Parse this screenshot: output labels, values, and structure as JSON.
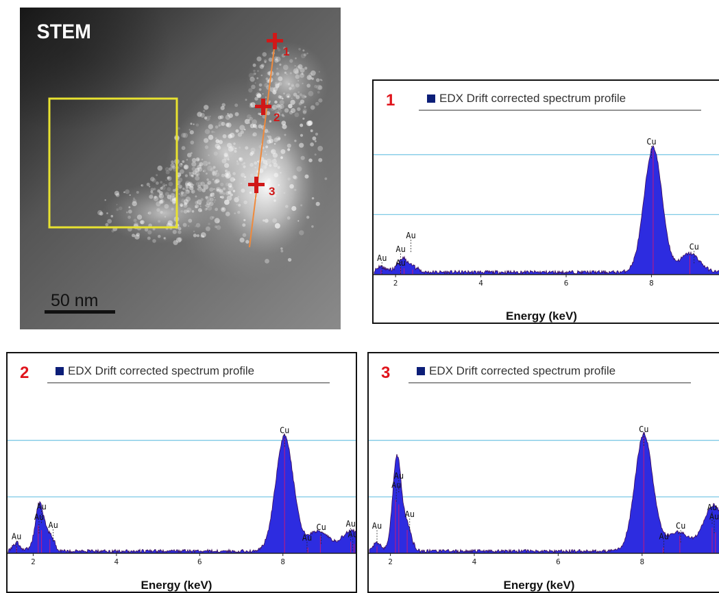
{
  "stem": {
    "label": "STEM",
    "scale_bar": "50 nm",
    "points": [
      "1",
      "2",
      "3"
    ],
    "colors": {
      "roi_box": "#e8e230",
      "line_profile": "#f08a3c",
      "markers": "#d01818"
    }
  },
  "colors": {
    "spectrum_fill": "#2d2ce0",
    "spectrum_edge": "#3a0a55",
    "gridline": "#7ec9e6",
    "panel_number": "#e0141c",
    "legend_swatch": "#0c1e78"
  },
  "chart_data": [
    {
      "type": "area",
      "panel_number": "1",
      "legend": "EDX Drift corrected spectrum profile",
      "xlabel": "Energy (keV)",
      "xticks": [
        "2",
        "4",
        "6",
        "8"
      ],
      "xlim": [
        1.5,
        9.6
      ],
      "ylim": [
        0,
        1.2
      ],
      "grid": "horizontal",
      "peaks": [
        {
          "element": "Cu",
          "x": 8.04,
          "y": 1.0
        },
        {
          "element": "Cu",
          "x": 8.9,
          "y": 0.15
        },
        {
          "element": "Au",
          "x": 1.66,
          "y": 0.04
        },
        {
          "element": "Au",
          "x": 2.12,
          "y": 0.06
        },
        {
          "element": "Au",
          "x": 2.2,
          "y": 0.05
        },
        {
          "element": "Au",
          "x": 2.4,
          "y": 0.04
        }
      ],
      "annotations": [
        {
          "text": "Au",
          "x": 1.68,
          "y": 0.11
        },
        {
          "text": "Au",
          "x": 2.12,
          "y": 0.18
        },
        {
          "text": "Au",
          "x": 2.12,
          "y": 0.07
        },
        {
          "text": "Au",
          "x": 2.36,
          "y": 0.29
        },
        {
          "text": "Cu",
          "x": 8.0,
          "y": 1.04
        },
        {
          "text": "Cu",
          "x": 9.0,
          "y": 0.2
        }
      ]
    },
    {
      "type": "area",
      "panel_number": "2",
      "legend": "EDX Drift corrected spectrum profile",
      "xlabel": "Energy (keV)",
      "xticks": [
        "2",
        "4",
        "6",
        "8"
      ],
      "xlim": [
        1.4,
        9.75
      ],
      "ylim": [
        0,
        1.22
      ],
      "grid": "horizontal",
      "peaks": [
        {
          "element": "Cu",
          "x": 8.04,
          "y": 1.0
        },
        {
          "element": "Cu",
          "x": 8.9,
          "y": 0.15
        },
        {
          "element": "Au",
          "x": 1.6,
          "y": 0.06
        },
        {
          "element": "Au",
          "x": 2.12,
          "y": 0.24
        },
        {
          "element": "Au",
          "x": 2.2,
          "y": 0.2
        },
        {
          "element": "Au",
          "x": 2.4,
          "y": 0.12
        },
        {
          "element": "Au",
          "x": 8.6,
          "y": 0.05
        },
        {
          "element": "Au",
          "x": 9.63,
          "y": 0.1
        },
        {
          "element": "Au",
          "x": 9.71,
          "y": 0.08
        }
      ],
      "annotations": [
        {
          "text": "Au",
          "x": 1.6,
          "y": 0.12
        },
        {
          "text": "Au",
          "x": 2.2,
          "y": 0.38
        },
        {
          "text": "Au",
          "x": 2.14,
          "y": 0.29
        },
        {
          "text": "Au",
          "x": 2.48,
          "y": 0.22
        },
        {
          "text": "Cu",
          "x": 8.04,
          "y": 1.04
        },
        {
          "text": "Au",
          "x": 8.58,
          "y": 0.11
        },
        {
          "text": "Cu",
          "x": 8.92,
          "y": 0.2
        },
        {
          "text": "Au",
          "x": 9.63,
          "y": 0.23
        },
        {
          "text": "Au",
          "x": 9.68,
          "y": 0.14
        }
      ]
    },
    {
      "type": "area",
      "panel_number": "3",
      "legend": "EDX Drift corrected spectrum profile",
      "xlabel": "Energy (keV)",
      "xticks": [
        "2",
        "4",
        "6",
        "8"
      ],
      "xlim": [
        1.5,
        9.85
      ],
      "ylim": [
        0,
        1.21
      ],
      "grid": "horizontal",
      "peaks": [
        {
          "element": "Au",
          "x": 1.68,
          "y": 0.06
        },
        {
          "element": "Au",
          "x": 2.12,
          "y": 0.46
        },
        {
          "element": "Au",
          "x": 2.2,
          "y": 0.42
        },
        {
          "element": "Au",
          "x": 2.4,
          "y": 0.2
        },
        {
          "element": "Cu",
          "x": 8.04,
          "y": 1.0
        },
        {
          "element": "Au",
          "x": 8.5,
          "y": 0.05
        },
        {
          "element": "Cu",
          "x": 8.9,
          "y": 0.15
        },
        {
          "element": "Au",
          "x": 9.67,
          "y": 0.22
        },
        {
          "element": "Au",
          "x": 9.75,
          "y": 0.18
        }
      ],
      "annotations": [
        {
          "text": "Au",
          "x": 1.68,
          "y": 0.21
        },
        {
          "text": "Au",
          "x": 2.2,
          "y": 0.64
        },
        {
          "text": "Au",
          "x": 2.14,
          "y": 0.56
        },
        {
          "text": "Au",
          "x": 2.46,
          "y": 0.31
        },
        {
          "text": "Cu",
          "x": 8.04,
          "y": 1.04
        },
        {
          "text": "Au",
          "x": 8.52,
          "y": 0.12
        },
        {
          "text": "Cu",
          "x": 8.92,
          "y": 0.21
        },
        {
          "text": "Au",
          "x": 9.67,
          "y": 0.37
        },
        {
          "text": "Au",
          "x": 9.72,
          "y": 0.29
        }
      ]
    }
  ]
}
